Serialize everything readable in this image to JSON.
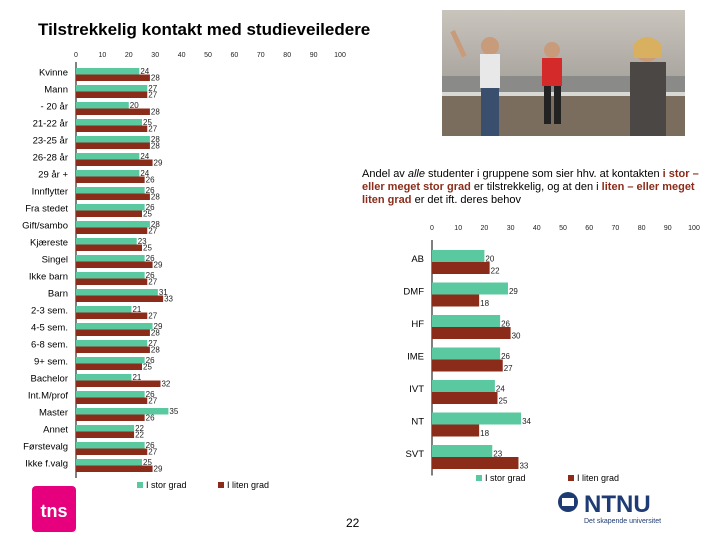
{
  "title": "Tilstrekkelig kontakt med studieveiledere",
  "note": {
    "part1": "Andel av ",
    "alle": "alle",
    "part2": " studenter i gruppene som sier  hhv. at kontakten ",
    "istor": "i stor – eller meget stor grad",
    "part3": " er tilstrekkelig, og at den i ",
    "liten": "liten – eller meget liten grad",
    "part4": " er det ift. deres behov"
  },
  "page_number": "22",
  "logo_left": "tns",
  "logo_right": {
    "name": "NTNU",
    "tagline": "Det skapende universitet"
  },
  "colors": {
    "stor": "#5bc9a0",
    "liten": "#8b2c1a",
    "axis": "#000000",
    "title_accent": "#8b2c1a"
  },
  "chart_data": [
    {
      "type": "bar",
      "orientation": "horizontal",
      "title": "",
      "xlim": [
        0,
        100
      ],
      "ticks": [
        0,
        10,
        20,
        30,
        40,
        50,
        60,
        70,
        80,
        90,
        100
      ],
      "legend_position": "bottom",
      "categories": [
        "Kvinne",
        "Mann",
        "- 20 år",
        "21-22 år",
        "23-25 år",
        "26-28 år",
        "29 år +",
        "Innflytter",
        "Fra stedet",
        "Gift/sambo",
        "Kjæreste",
        "Singel",
        "Ikke barn",
        "Barn",
        "2-3 sem.",
        "4-5 sem.",
        "6-8 sem.",
        "9+ sem.",
        "Bachelor",
        "Int.M/prof",
        "Master",
        "Annet",
        "Førstevalg",
        "Ikke f.valg"
      ],
      "series": [
        {
          "name": "I stor grad",
          "values": [
            24,
            27,
            20,
            25,
            28,
            24,
            24,
            26,
            26,
            28,
            23,
            26,
            26,
            31,
            21,
            29,
            27,
            26,
            21,
            26,
            35,
            22,
            26,
            25
          ]
        },
        {
          "name": "I liten grad",
          "values": [
            28,
            27,
            28,
            27,
            28,
            29,
            26,
            28,
            25,
            27,
            25,
            29,
            27,
            33,
            27,
            28,
            28,
            25,
            32,
            27,
            26,
            22,
            27,
            29
          ]
        }
      ]
    },
    {
      "type": "bar",
      "orientation": "horizontal",
      "title": "",
      "xlim": [
        0,
        100
      ],
      "ticks": [
        0,
        10,
        20,
        30,
        40,
        50,
        60,
        70,
        80,
        90,
        100
      ],
      "legend_position": "bottom",
      "categories": [
        "AB",
        "DMF",
        "HF",
        "IME",
        "IVT",
        "NT",
        "SVT"
      ],
      "series": [
        {
          "name": "I stor grad",
          "values": [
            20,
            29,
            26,
            26,
            24,
            34,
            23
          ]
        },
        {
          "name": "I liten grad",
          "values": [
            22,
            18,
            30,
            27,
            25,
            18,
            33
          ]
        }
      ]
    }
  ]
}
